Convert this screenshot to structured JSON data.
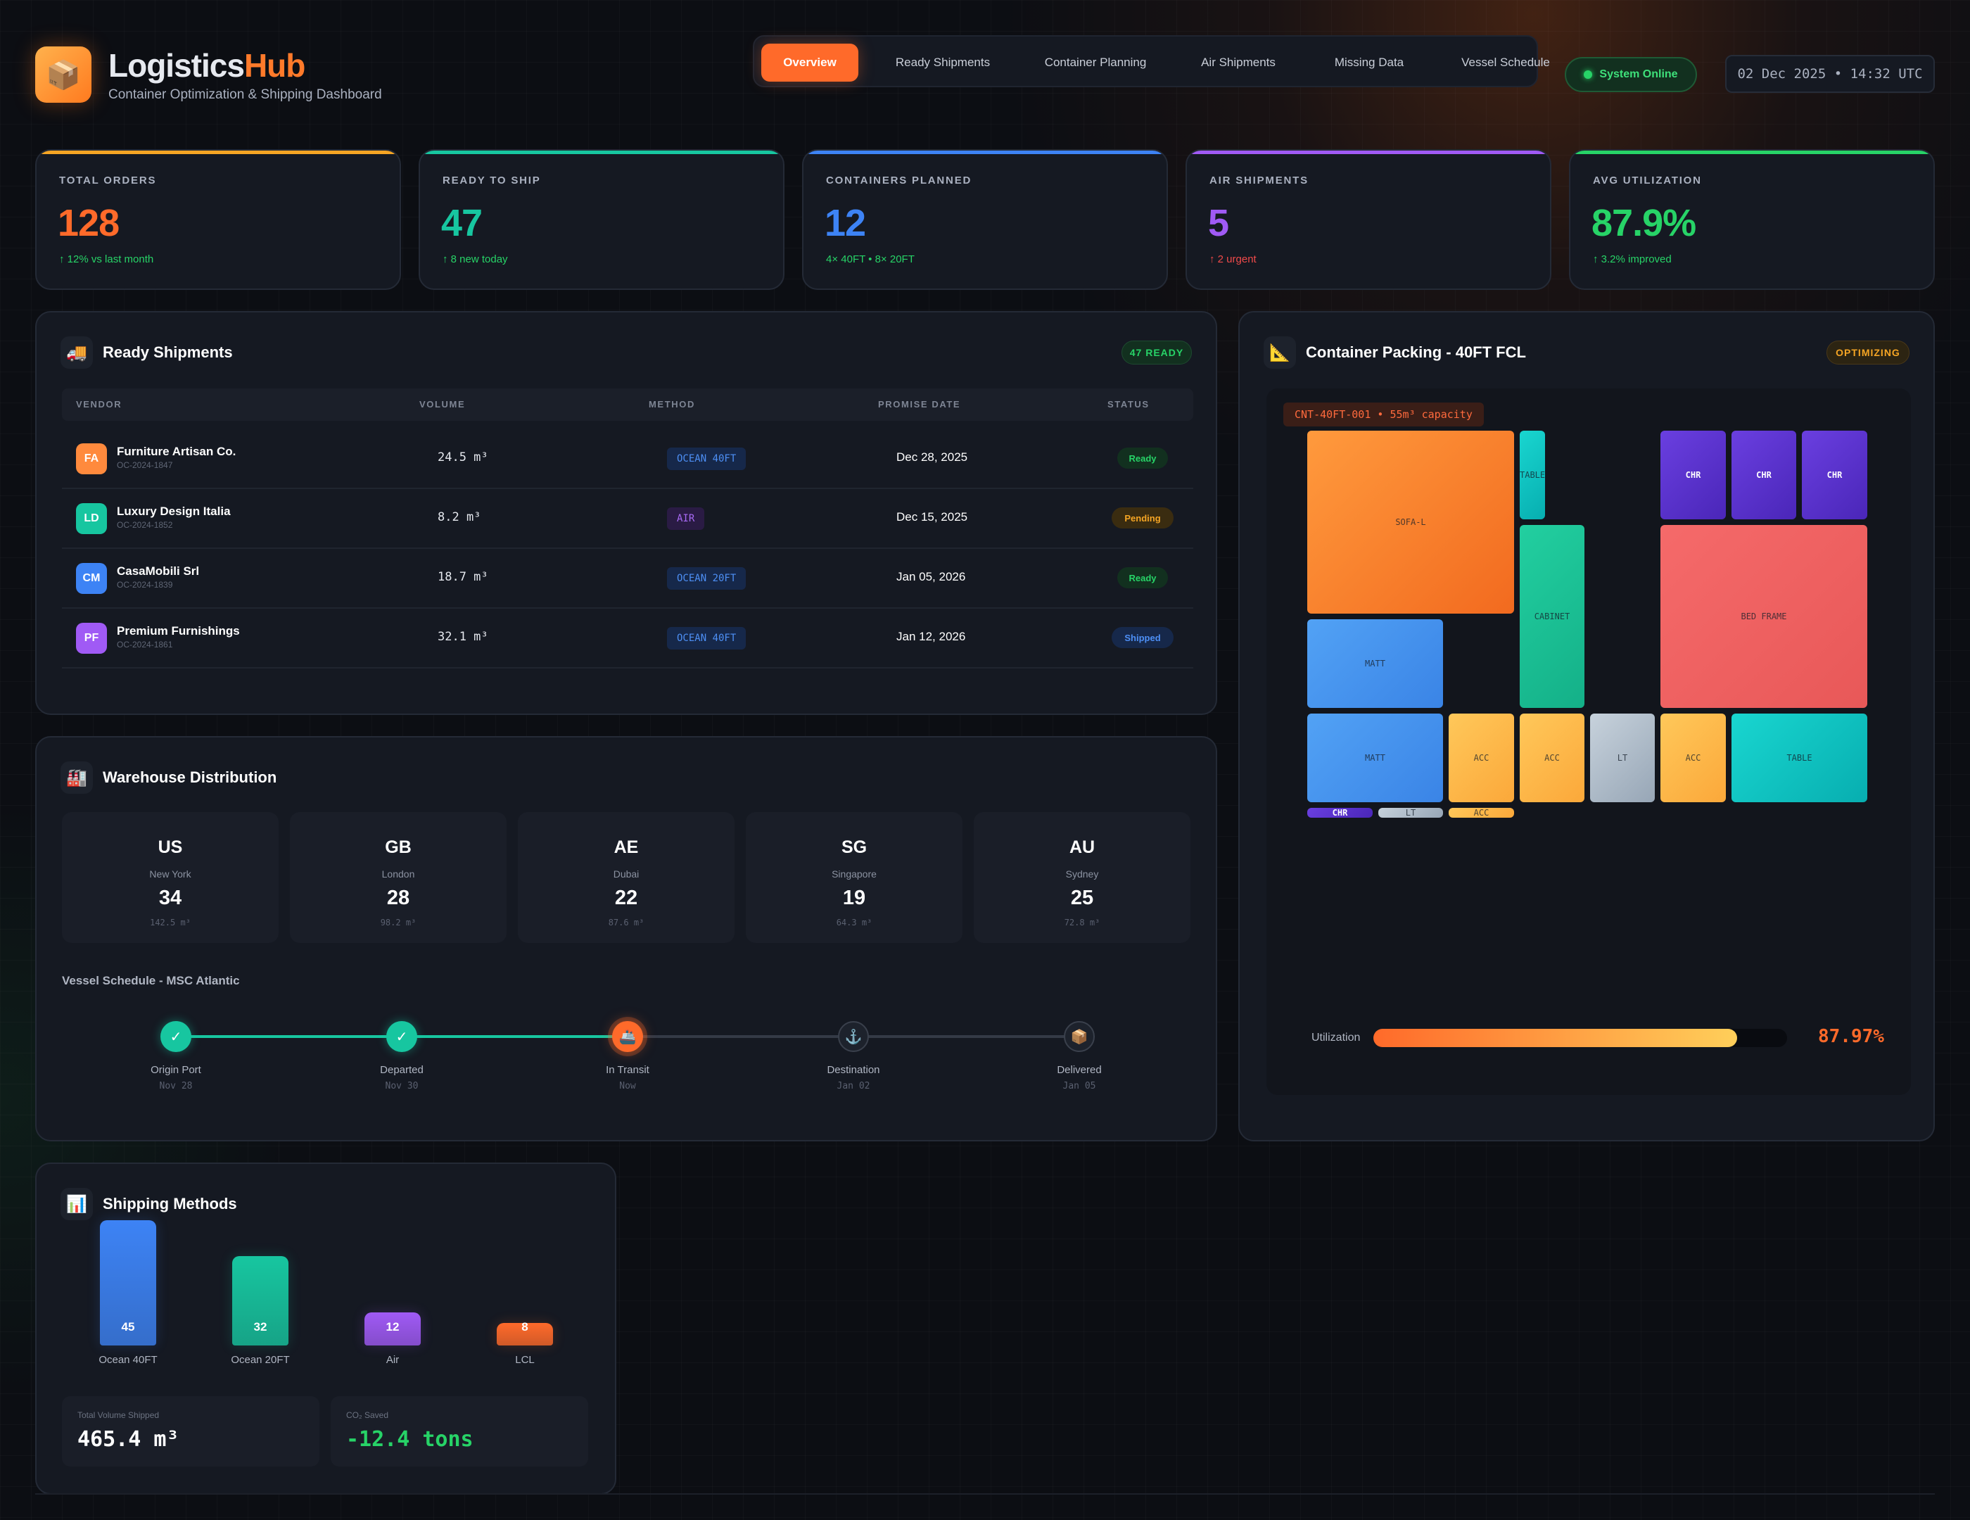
{
  "header": {
    "logo_icon": "📦",
    "brand_main": "Logistics",
    "brand_accent": "Hub",
    "subtitle": "Container Optimization & Shipping Dashboard",
    "nav": [
      "Overview",
      "Ready Shipments",
      "Container Planning",
      "Air Shipments",
      "Missing Data",
      "Vessel Schedule"
    ],
    "active_tab": "Overview",
    "system_status": "System Online",
    "clock": "02 Dec 2025 • 14:32 UTC"
  },
  "stats": [
    {
      "label": "TOTAL ORDERS",
      "value": "128",
      "sub": "↑ 12% vs last month",
      "color": "#ff6a2a",
      "bar": "#f5a524",
      "sub_color": "#27d367"
    },
    {
      "label": "READY TO SHIP",
      "value": "47",
      "sub": "↑ 8 new today",
      "color": "#17c6a0",
      "bar": "#17c6a0",
      "sub_color": "#27d367"
    },
    {
      "label": "CONTAINERS PLANNED",
      "value": "12",
      "sub": "4× 40FT • 8× 20FT",
      "color": "#3d83f5",
      "bar": "#3d83f5",
      "sub_color": "#27d367"
    },
    {
      "label": "AIR SHIPMENTS",
      "value": "5",
      "sub": "↑ 2 urgent",
      "color": "#a05af5",
      "bar": "#a05af5",
      "sub_color": "#f04a4a"
    },
    {
      "label": "AVG UTILIZATION",
      "value": "87.9%",
      "sub": "↑ 3.2% improved",
      "color": "#27d367",
      "bar": "#27d367",
      "sub_color": "#27d367"
    }
  ],
  "shipments": {
    "icon": "🚚",
    "title": "Ready Shipments",
    "badge": "47 READY",
    "columns": [
      "VENDOR",
      "VOLUME",
      "METHOD",
      "PROMISE DATE",
      "STATUS"
    ],
    "rows": [
      {
        "initials": "FA",
        "name": "Furniture Artisan Co.",
        "id": "OC-2024-1847",
        "volume": "24.5 m³",
        "method": "OCEAN 40FT",
        "date": "Dec 28, 2025",
        "status": "Ready",
        "avatar": "#ff8a3d",
        "mkind": "ocean",
        "skind": "ready"
      },
      {
        "initials": "LD",
        "name": "Luxury Design Italia",
        "id": "OC-2024-1852",
        "volume": "8.2 m³",
        "method": "AIR",
        "date": "Dec 15, 2025",
        "status": "Pending",
        "avatar": "#17c6a0",
        "mkind": "air",
        "skind": "pending"
      },
      {
        "initials": "CM",
        "name": "CasaMobili Srl",
        "id": "OC-2024-1839",
        "volume": "18.7 m³",
        "method": "OCEAN 20FT",
        "date": "Jan 05, 2026",
        "status": "Ready",
        "avatar": "#3d83f5",
        "mkind": "ocean",
        "skind": "ready"
      },
      {
        "initials": "PF",
        "name": "Premium Furnishings",
        "id": "OC-2024-1861",
        "volume": "32.1 m³",
        "method": "OCEAN 40FT",
        "date": "Jan 12, 2026",
        "status": "Shipped",
        "avatar": "#a05af5",
        "mkind": "ocean",
        "skind": "shipped"
      }
    ]
  },
  "warehouse": {
    "icon": "🏭",
    "title": "Warehouse Distribution",
    "items": [
      {
        "code": "US",
        "city": "New York",
        "count": "34",
        "volume": "142.5 m³"
      },
      {
        "code": "GB",
        "city": "London",
        "count": "28",
        "volume": "98.2 m³"
      },
      {
        "code": "AE",
        "city": "Dubai",
        "count": "22",
        "volume": "87.6 m³"
      },
      {
        "code": "SG",
        "city": "Singapore",
        "count": "19",
        "volume": "64.3 m³"
      },
      {
        "code": "AU",
        "city": "Sydney",
        "count": "25",
        "volume": "72.8 m³"
      }
    ],
    "vessel_title": "Vessel Schedule - MSC Atlantic",
    "timeline": [
      {
        "label": "Origin Port",
        "date": "Nov 28",
        "icon": "✓",
        "state": "done"
      },
      {
        "label": "Departed",
        "date": "Nov 30",
        "icon": "✓",
        "state": "done"
      },
      {
        "label": "In Transit",
        "date": "Now",
        "icon": "🚢",
        "state": "current"
      },
      {
        "label": "Destination",
        "date": "Jan 02",
        "icon": "⚓",
        "state": "pending"
      },
      {
        "label": "Delivered",
        "date": "Jan 05",
        "icon": "📦",
        "state": "pending"
      }
    ]
  },
  "packing": {
    "icon": "📐",
    "title": "Container Packing - 40FT FCL",
    "badge": "OPTIMIZING",
    "container_tag": "CNT-40FT-001 • 55m³ capacity",
    "boxes": [
      {
        "label": "SOFA-L",
        "color": "orange"
      },
      {
        "label": "TABLE",
        "color": "cyan"
      },
      {
        "label": "CHR",
        "color": "purple"
      },
      {
        "label": "CHR",
        "color": "purple"
      },
      {
        "label": "CHR",
        "color": "purple"
      },
      {
        "label": "CABINET",
        "color": "green"
      },
      {
        "label": "BED FRAME",
        "color": "red"
      },
      {
        "label": "MATT",
        "color": "blue"
      },
      {
        "label": "MATT",
        "color": "blue"
      },
      {
        "label": "ACC",
        "color": "yellow"
      },
      {
        "label": "ACC",
        "color": "yellow"
      },
      {
        "label": "LT",
        "color": "gray"
      },
      {
        "label": "ACC",
        "color": "yellow"
      },
      {
        "label": "TABLE",
        "color": "cyan"
      },
      {
        "label": "CHR",
        "color": "purple"
      },
      {
        "label": "LT",
        "color": "gray"
      },
      {
        "label": "ACC",
        "color": "yellow"
      }
    ],
    "utilization_label": "Utilization",
    "utilization_value": "87.97%",
    "utilization_fraction": 0.8797
  },
  "methods": {
    "icon": "📊",
    "title": "Shipping Methods",
    "chart_data": {
      "type": "bar",
      "categories": [
        "Ocean 40FT",
        "Ocean 20FT",
        "Air",
        "LCL"
      ],
      "values": [
        45,
        32,
        12,
        8
      ],
      "colors": [
        "#3d83f5",
        "#17c6a0",
        "#a05af5",
        "#ff6a2a"
      ]
    },
    "total_volume_label": "Total Volume Shipped",
    "total_volume": "465.4 m³",
    "co2_label": "CO₂ Saved",
    "co2": "-12.4 tons"
  }
}
